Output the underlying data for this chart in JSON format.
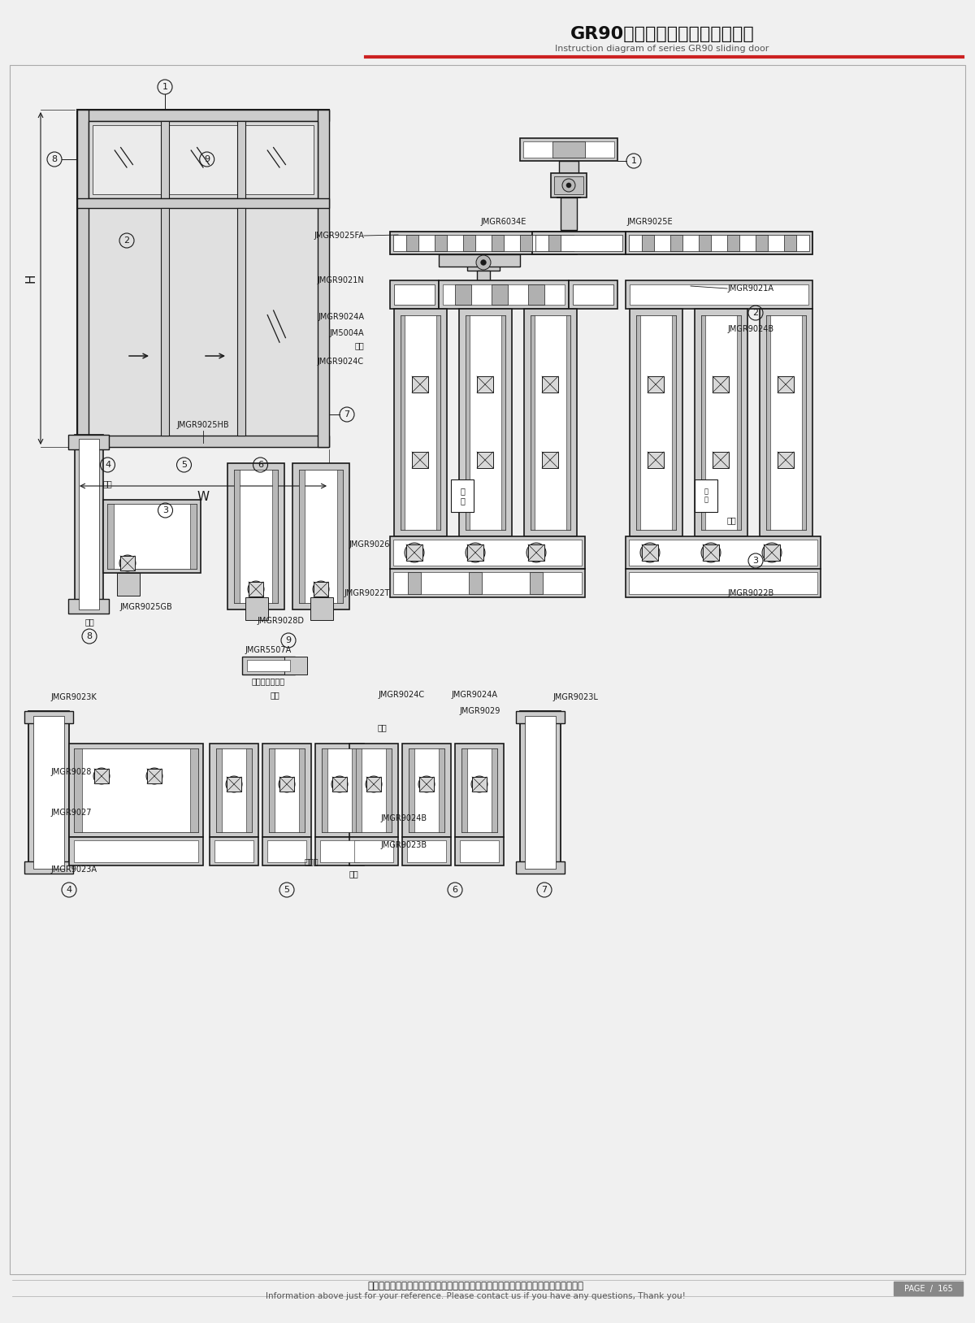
{
  "title_cn": "GR90系列推拉门结构图（三轨）",
  "title_en": "Instruction diagram of series GR90 sliding door",
  "footer_cn": "图中所示型材截面、装配、编号、尺寸及重量仅供参考。如有疑问，请向本公司查询。",
  "footer_en": "Information above just for your reference. Please contact us if you have any questions, Thank you!",
  "page": "PAGE  /  165",
  "bg_color": "#f0f0f0",
  "line_color": "#1a1a1a",
  "profile_fill": "#cccccc",
  "glass_fill": "#e8e8e8",
  "white": "#ffffff",
  "red_line": "#cc2222",
  "page_bg": "#888888"
}
